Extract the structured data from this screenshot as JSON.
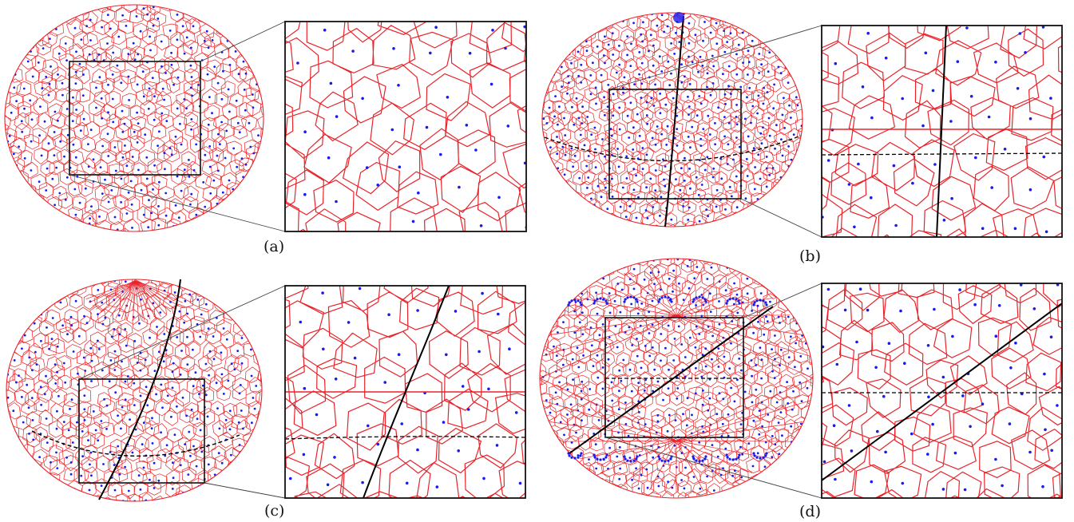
{
  "panels": [
    {
      "id": "a",
      "caption": "(a)",
      "style": "random"
    },
    {
      "id": "b",
      "caption": "(b)",
      "style": "oblate"
    },
    {
      "id": "c",
      "caption": "(c)",
      "style": "spiral"
    },
    {
      "id": "d",
      "caption": "(d)",
      "style": "clustered"
    }
  ],
  "colors": {
    "cell_edges": "#e8232a",
    "generators": "#1a1aee",
    "frame": "#111111",
    "curves": "#000000"
  }
}
